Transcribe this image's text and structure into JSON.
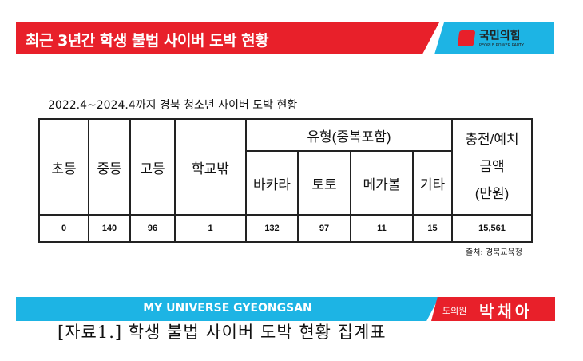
{
  "header": {
    "title": "최근 3년간 학생 불법 사이버 도박 현황",
    "logo_name": "국민의힘",
    "logo_sub": "PEOPLE POWER PARTY"
  },
  "caption": "2022.4~2024.4까지 경북 청소년 사이버 도박 현황",
  "table": {
    "headers": {
      "elementary": "초등",
      "middle": "중등",
      "high": "고등",
      "out_of_school": "학교밖",
      "type_group": "유형(중복포함)",
      "baccarat": "바카라",
      "toto": "토토",
      "megaball": "메가볼",
      "other": "기타",
      "amount_line1": "충전/예치",
      "amount_line2": "금액",
      "amount_line3": "(만원)"
    },
    "row": [
      "0",
      "140",
      "96",
      "1",
      "132",
      "97",
      "11",
      "15",
      "15,561"
    ]
  },
  "source": "출처: 경북교육청",
  "footer_banner": {
    "slogan": "MY UNIVERSE GYEONGSAN",
    "role": "도의원",
    "name": "박채아"
  },
  "figure_caption": "[자료1.] 학생 불법 사이버 도박 현황 집계표",
  "colors": {
    "red": "#e8202a",
    "blue": "#1db4e4"
  }
}
